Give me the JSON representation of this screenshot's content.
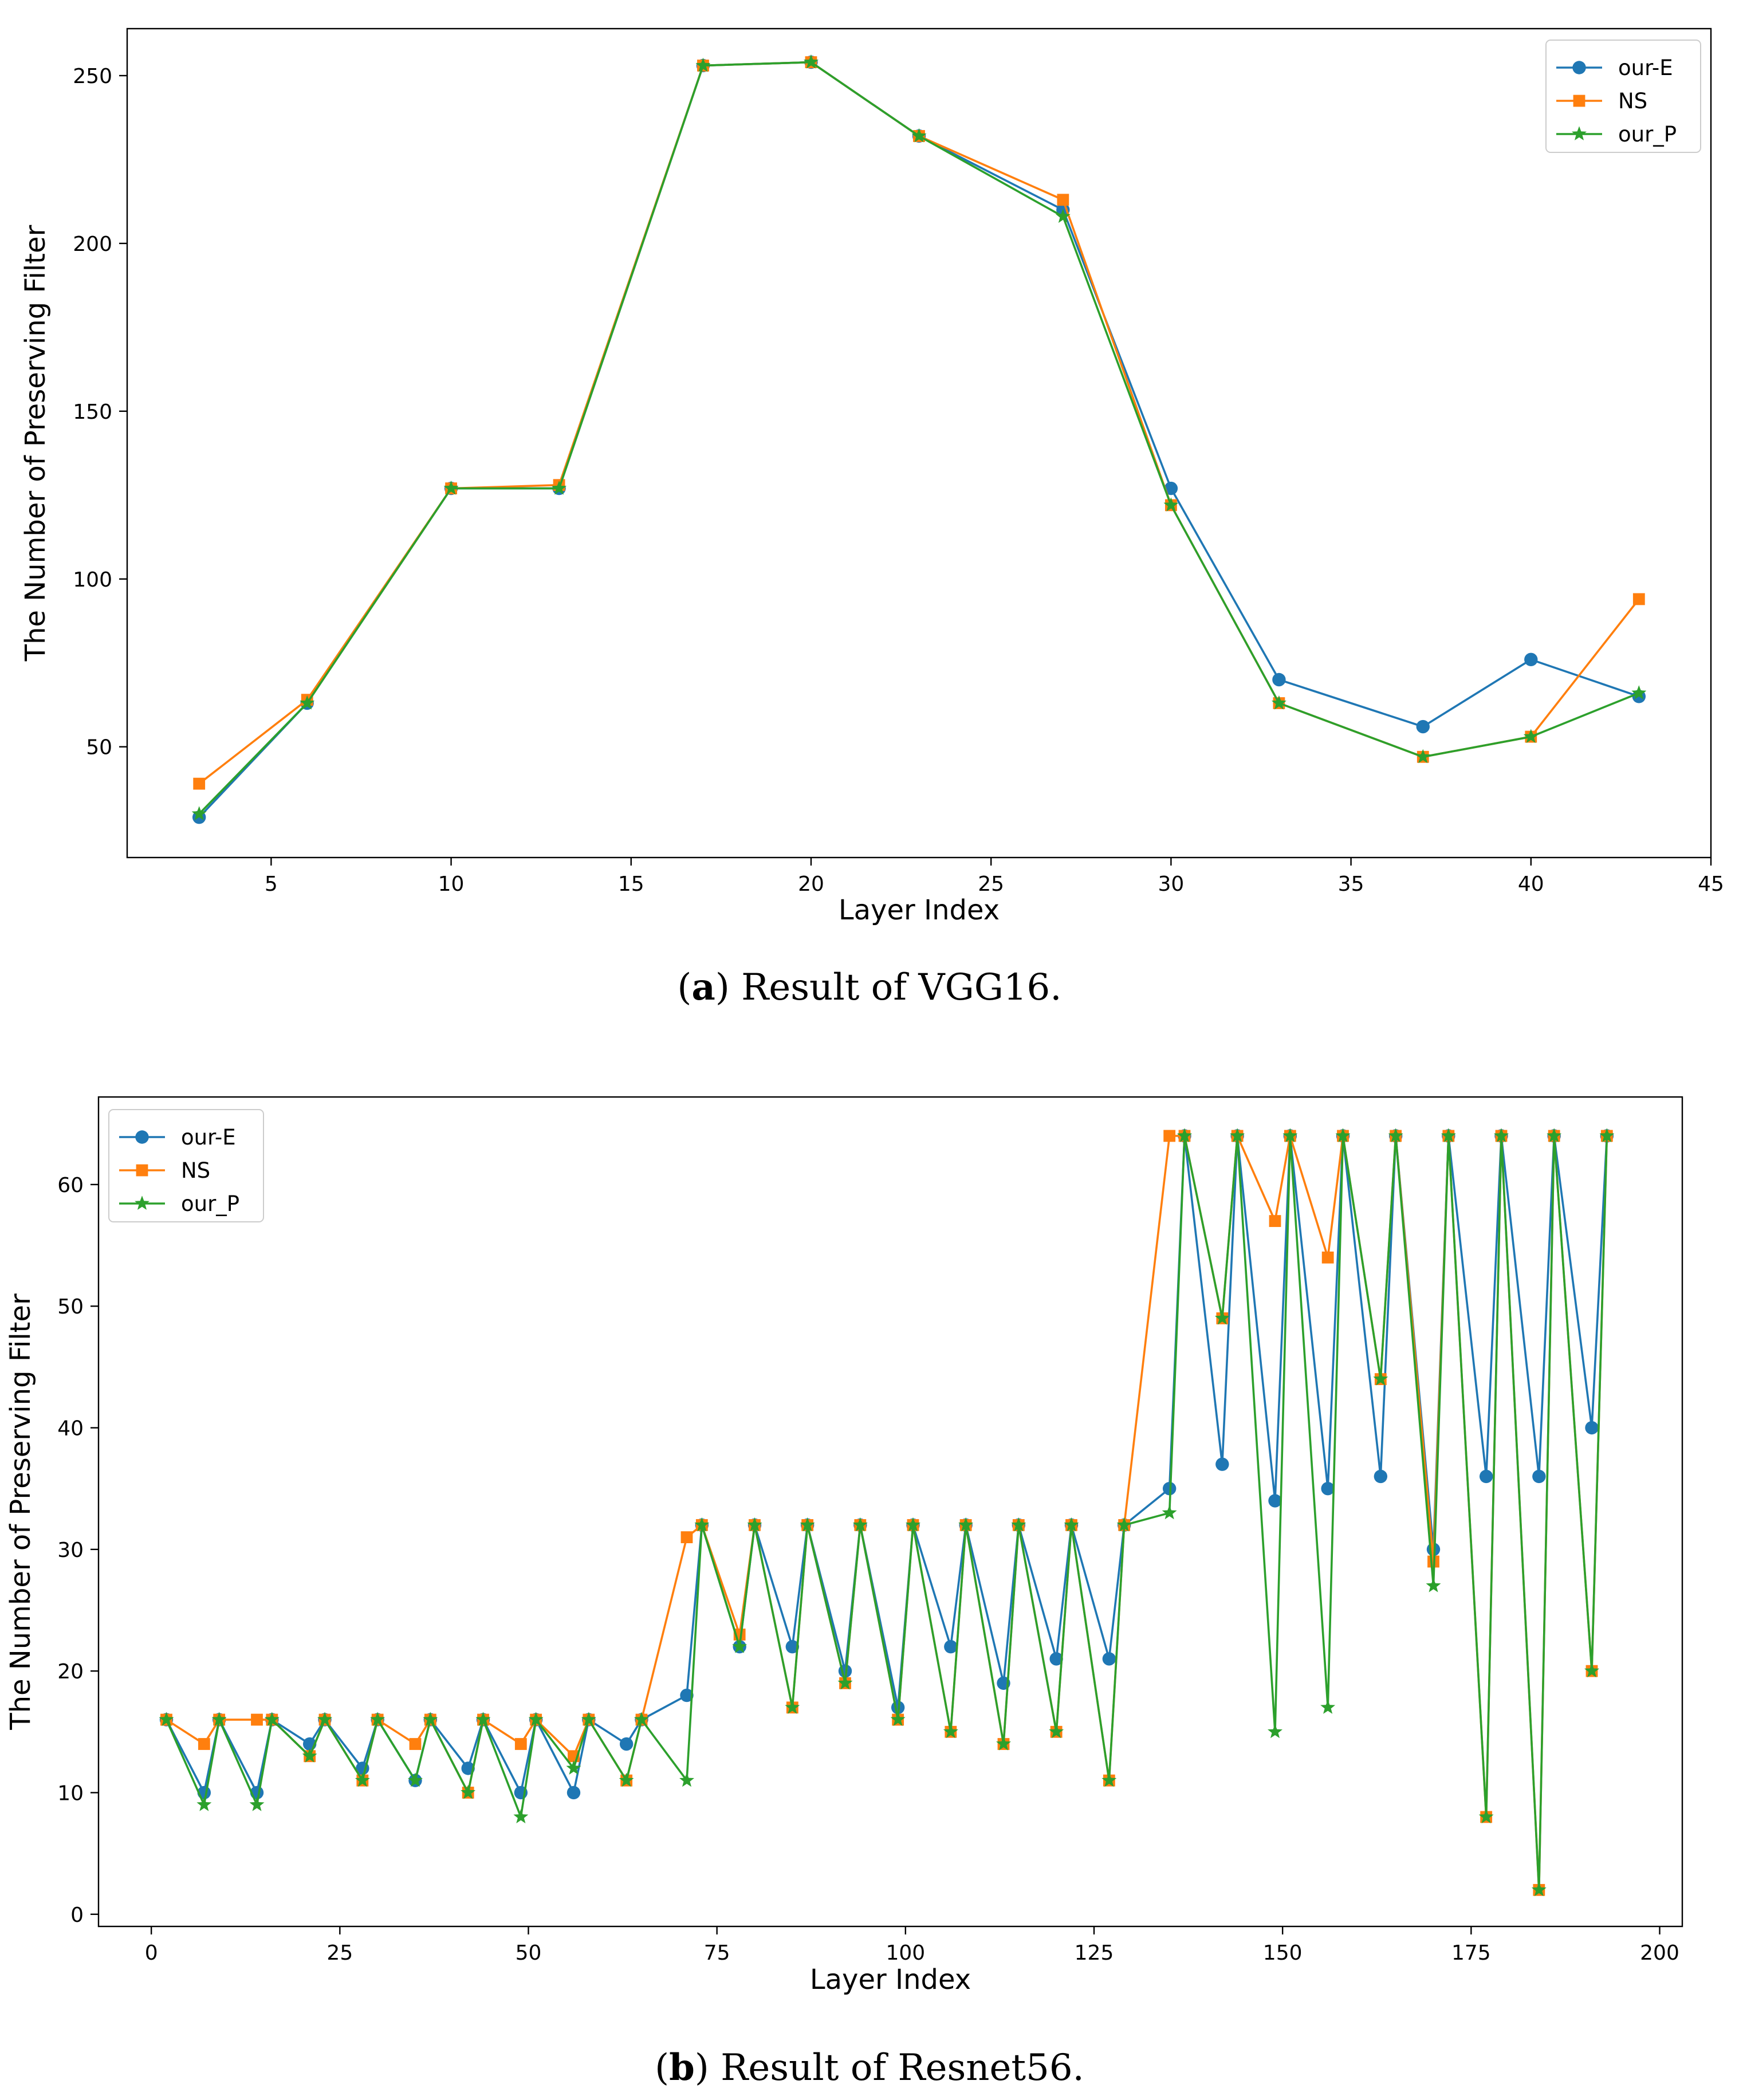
{
  "series_styles": {
    "our-E": {
      "color": "#1f77b4",
      "marker": "circle"
    },
    "NS": {
      "color": "#ff7f0e",
      "marker": "square"
    },
    "our_P": {
      "color": "#2ca02c",
      "marker": "star"
    }
  },
  "captions": [
    {
      "label": "a",
      "text": ") Result of VGG16.",
      "open": "("
    },
    {
      "label": "b",
      "text": ") Result of Resnet56.",
      "open": "("
    }
  ],
  "chart_data": [
    {
      "type": "line",
      "title": "",
      "xlabel": "Layer Index",
      "ylabel": "The Number of Preserving Filter",
      "xlim": [
        1,
        45
      ],
      "ylim": [
        17,
        264
      ],
      "xticks": [
        5,
        10,
        15,
        20,
        25,
        30,
        35,
        40,
        45
      ],
      "yticks": [
        50,
        100,
        150,
        200,
        250
      ],
      "legend_position": "top-right",
      "x": [
        3,
        6,
        10,
        13,
        17,
        20,
        23,
        27,
        30,
        33,
        37,
        40,
        43
      ],
      "series": [
        {
          "name": "our-E",
          "values": [
            29,
            63,
            127,
            127,
            253,
            254,
            232,
            210,
            127,
            70,
            56,
            76,
            65
          ]
        },
        {
          "name": "NS",
          "values": [
            39,
            64,
            127,
            128,
            253,
            254,
            232,
            213,
            122,
            63,
            47,
            53,
            94
          ]
        },
        {
          "name": "our_P",
          "values": [
            30,
            63,
            127,
            127,
            253,
            254,
            232,
            208,
            122,
            63,
            47,
            53,
            66
          ]
        }
      ]
    },
    {
      "type": "line",
      "title": "",
      "xlabel": "Layer Index",
      "ylabel": "The Number of Preserving Filter",
      "xlim": [
        -7,
        203
      ],
      "ylim": [
        -1,
        67.2
      ],
      "xticks": [
        0,
        25,
        50,
        75,
        100,
        125,
        150,
        175,
        200
      ],
      "yticks": [
        0,
        10,
        20,
        30,
        40,
        50,
        60
      ],
      "legend_position": "top-left",
      "x": [
        2,
        7,
        9,
        14,
        16,
        21,
        23,
        28,
        30,
        35,
        37,
        42,
        44,
        49,
        51,
        56,
        58,
        63,
        65,
        71,
        73,
        78,
        80,
        85,
        87,
        92,
        94,
        99,
        101,
        106,
        108,
        113,
        115,
        120,
        122,
        127,
        129,
        135,
        137,
        142,
        144,
        149,
        151,
        156,
        158,
        163,
        165,
        170,
        172,
        177,
        179,
        184,
        186,
        191,
        193
      ],
      "series": [
        {
          "name": "our-E",
          "values": [
            16,
            10,
            16,
            10,
            16,
            14,
            16,
            12,
            16,
            11,
            16,
            12,
            16,
            10,
            16,
            10,
            16,
            14,
            16,
            18,
            32,
            22,
            32,
            22,
            32,
            20,
            32,
            17,
            32,
            22,
            32,
            19,
            32,
            21,
            32,
            21,
            32,
            35,
            64,
            37,
            64,
            34,
            64,
            35,
            64,
            36,
            64,
            30,
            64,
            36,
            64,
            36,
            64,
            40,
            64
          ]
        },
        {
          "name": "NS",
          "values": [
            16,
            14,
            16,
            16,
            16,
            13,
            16,
            11,
            16,
            14,
            16,
            10,
            16,
            14,
            16,
            13,
            16,
            11,
            16,
            31,
            32,
            23,
            32,
            17,
            32,
            19,
            32,
            16,
            32,
            15,
            32,
            14,
            32,
            15,
            32,
            11,
            32,
            64,
            64,
            49,
            64,
            57,
            64,
            54,
            64,
            44,
            64,
            29,
            64,
            8,
            64,
            2,
            64,
            20,
            64
          ]
        },
        {
          "name": "our_P",
          "values": [
            16,
            9,
            16,
            9,
            16,
            13,
            16,
            11,
            16,
            11,
            16,
            10,
            16,
            8,
            16,
            12,
            16,
            11,
            16,
            11,
            32,
            22,
            32,
            17,
            32,
            19,
            32,
            16,
            32,
            15,
            32,
            14,
            32,
            15,
            32,
            11,
            32,
            33,
            64,
            49,
            64,
            15,
            64,
            17,
            64,
            44,
            64,
            27,
            64,
            8,
            64,
            2,
            64,
            20,
            64
          ]
        }
      ]
    }
  ]
}
